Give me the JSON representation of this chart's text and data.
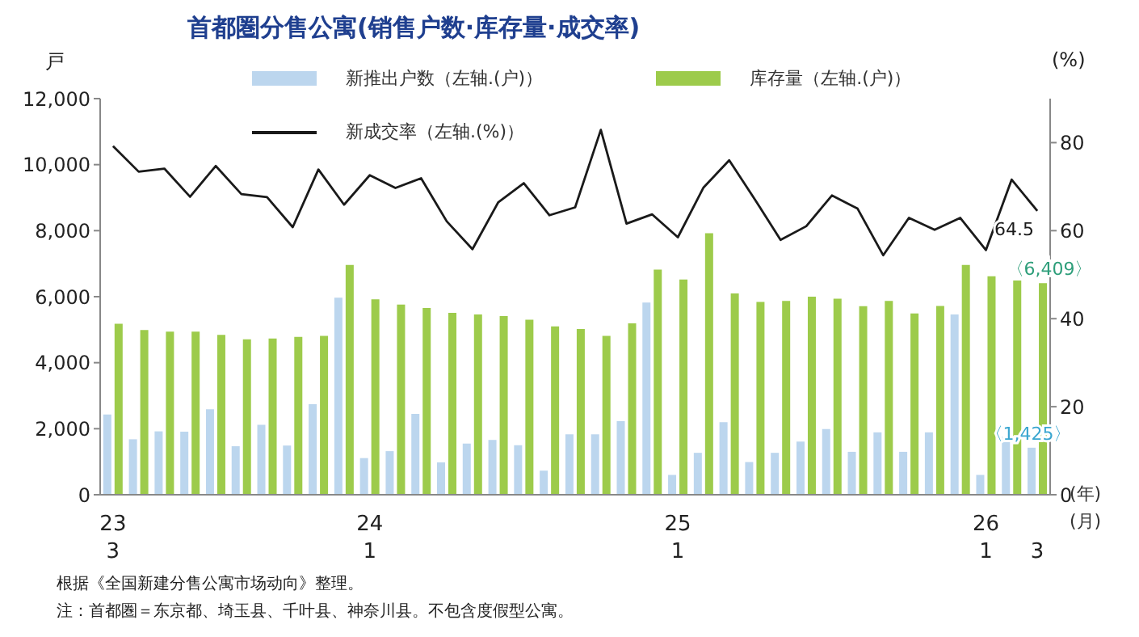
{
  "chart_data": {
    "type": "bar",
    "title": "首都圏分售公寓(销售户数·库存量·成交率)",
    "ylabel": "戸",
    "y2label": "(%)",
    "xlabel": "(年)\n(月)",
    "categories": [
      "23\n3",
      null,
      null,
      null,
      null,
      null,
      null,
      null,
      null,
      null,
      "24\n1",
      null,
      null,
      null,
      null,
      null,
      null,
      null,
      null,
      null,
      null,
      null,
      "25\n1",
      null,
      null,
      null,
      null,
      null,
      null,
      null,
      null,
      null,
      null,
      null,
      "26\n1",
      null,
      "3"
    ],
    "series": [
      {
        "name": "新推出户数（左轴.(户)）",
        "color": "#bcd6ee",
        "values": [
          2430,
          1680,
          1920,
          1910,
          2590,
          1470,
          2120,
          1490,
          2740,
          5970,
          1110,
          1320,
          2450,
          980,
          1550,
          1660,
          1500,
          730,
          1830,
          1830,
          2230,
          5820,
          600,
          1270,
          2200,
          990,
          1270,
          1610,
          1990,
          1300,
          1890,
          1300,
          1890,
          5460,
          600,
          1760,
          1425
        ],
        "value_labels": [
          null,
          null,
          null,
          null,
          null,
          null,
          null,
          null,
          null,
          null,
          null,
          null,
          null,
          null,
          null,
          null,
          null,
          null,
          null,
          null,
          null,
          null,
          null,
          null,
          null,
          null,
          null,
          null,
          null,
          null,
          null,
          null,
          null,
          null,
          null,
          null,
          "〈1,425〉"
        ]
      },
      {
        "name": "库存量（左轴.(户)）",
        "color": "#9dcb4b",
        "values": [
          5180,
          4990,
          4940,
          4940,
          4840,
          4710,
          4730,
          4780,
          4810,
          6960,
          5920,
          5760,
          5660,
          5510,
          5460,
          5410,
          5300,
          5100,
          5020,
          4810,
          5190,
          6820,
          6520,
          7920,
          6100,
          5840,
          5870,
          6000,
          5940,
          5710,
          5870,
          5490,
          5720,
          6960,
          6620,
          6490,
          6409
        ],
        "value_labels": [
          null,
          null,
          null,
          null,
          null,
          null,
          null,
          null,
          null,
          null,
          null,
          null,
          null,
          null,
          null,
          null,
          null,
          null,
          null,
          null,
          null,
          null,
          null,
          null,
          null,
          null,
          null,
          null,
          null,
          null,
          null,
          null,
          null,
          null,
          null,
          null,
          "〈6,409〉"
        ]
      },
      {
        "name": "新成交率（左轴.(%)）",
        "type": "line",
        "axis": "y2",
        "color": "#1a1a1a",
        "values": [
          79.2,
          73.4,
          74.1,
          67.7,
          74.7,
          68.3,
          67.6,
          60.8,
          73.9,
          65.9,
          72.6,
          69.7,
          71.9,
          62.1,
          55.8,
          66.4,
          70.8,
          63.5,
          65.3,
          82.9,
          61.6,
          63.7,
          58.5,
          69.8,
          76.0,
          67.1,
          57.9,
          61.0,
          68.0,
          65.0,
          54.4,
          62.9,
          60.2,
          62.9,
          55.6,
          71.6,
          64.5
        ],
        "value_labels": [
          null,
          null,
          null,
          null,
          null,
          null,
          null,
          null,
          null,
          null,
          null,
          null,
          null,
          null,
          null,
          null,
          null,
          null,
          null,
          null,
          null,
          null,
          null,
          null,
          null,
          null,
          null,
          null,
          null,
          null,
          null,
          null,
          null,
          null,
          null,
          null,
          "64.5"
        ]
      }
    ],
    "ylim": [
      0,
      12000
    ],
    "yticks": [
      0,
      {
        "value": 2000,
        "label": "2,000"
      },
      {
        "value": 4000,
        "label": "4,000"
      },
      {
        "value": 6000,
        "label": "6,000"
      },
      {
        "value": 8000,
        "label": "8,000"
      },
      {
        "value": 10000,
        "label": "10,000"
      },
      {
        "value": 12000,
        "label": "12,000"
      }
    ],
    "y2lim": [
      0,
      90
    ],
    "y2ticks": [
      0,
      20,
      40,
      60,
      80
    ],
    "legend": "top",
    "grid": false,
    "marker": "none",
    "annotations": [
      "根据《全国新建分售公寓市场动向》整理。",
      "注：首都圏＝东京都、埼玉县、千叶县、神奈川县。不包含度假型公寓。"
    ]
  }
}
